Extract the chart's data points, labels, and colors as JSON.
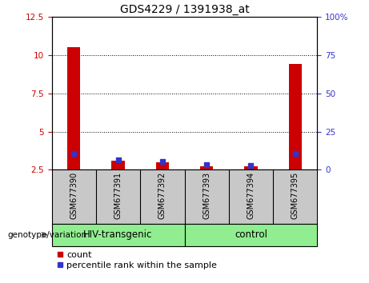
{
  "title": "GDS4229 / 1391938_at",
  "samples": [
    "GSM677390",
    "GSM677391",
    "GSM677392",
    "GSM677393",
    "GSM677394",
    "GSM677395"
  ],
  "red_values": [
    10.5,
    3.1,
    3.0,
    2.75,
    2.72,
    9.4
  ],
  "blue_values": [
    3.55,
    3.15,
    3.05,
    2.82,
    2.78,
    3.55
  ],
  "ylim_left": [
    2.5,
    12.5
  ],
  "ylim_right": [
    0,
    100
  ],
  "yticks_left": [
    2.5,
    5.0,
    7.5,
    10.0,
    12.5
  ],
  "ytick_labels_left": [
    "2.5",
    "5",
    "7.5",
    "10",
    "12.5"
  ],
  "yticks_right": [
    0,
    25,
    50,
    75,
    100
  ],
  "ytick_labels_right": [
    "0",
    "25",
    "50",
    "75",
    "100%"
  ],
  "groups": [
    {
      "label": "HIV-transgenic",
      "span": [
        0,
        3
      ]
    },
    {
      "label": "control",
      "span": [
        3,
        6
      ]
    }
  ],
  "group_label": "genotype/variation",
  "legend_count_label": "count",
  "legend_pct_label": "percentile rank within the sample",
  "bar_color": "#CC0000",
  "blue_color": "#3333CC",
  "bg_color": "#FFFFFF",
  "tick_area_color": "#C8C8C8",
  "group_color": "#90EE90",
  "bar_width": 0.3,
  "baseline": 2.5,
  "title_fontsize": 10,
  "axis_fontsize": 7.5,
  "legend_fontsize": 8
}
